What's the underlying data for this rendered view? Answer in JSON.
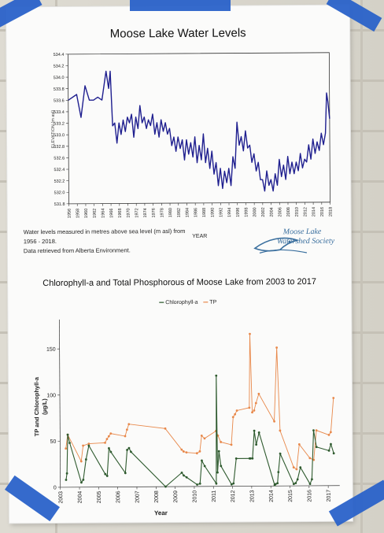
{
  "poster": {
    "chart1": {
      "title": "Moose Lake Water Levels",
      "ylabel": "ELEVATION (m asl)",
      "xlabel": "YEAR",
      "yticks": [
        "534.4",
        "534.2",
        "534.0",
        "533.8",
        "533.6",
        "533.4",
        "533.2",
        "533.0",
        "532.8",
        "532.6",
        "532.4",
        "532.2",
        "532.0",
        "531.8"
      ],
      "xticks": [
        "1956",
        "1958",
        "1960",
        "1962",
        "1964",
        "1966",
        "1968",
        "1970",
        "1972",
        "1974",
        "1976",
        "1978",
        "1980",
        "1982",
        "1984",
        "1986",
        "1988",
        "1990",
        "1992",
        "1994",
        "1996",
        "1998",
        "2000",
        "2002",
        "2004",
        "2006",
        "2008",
        "2010",
        "2012",
        "2014",
        "2016",
        "2018"
      ],
      "note_line1": "Water levels measured in metres above sea level (m asl) from",
      "note_line2": "1956 - 2018.",
      "note_line3": "Data retrieved from Alberta Environment.",
      "logo_line1": "Moose Lake",
      "logo_line2": "Watershed Society",
      "line_color": "#1f1f8f"
    },
    "chart2": {
      "title": "Chlorophyll-a and Total Phosphorous of Moose Lake from 2003 to 2017",
      "legend_chl": "Chlorophyll-a",
      "legend_tp": "TP",
      "ylabel_line1": "TP and Chlorophyll-a",
      "ylabel_line2": "(µg/L)",
      "xlabel": "Year",
      "yticks": [
        "150",
        "100",
        "50",
        "0"
      ],
      "xticks": [
        "2003",
        "2004",
        "2005",
        "2006",
        "2007",
        "2008",
        "2009",
        "2010",
        "2011",
        "2012",
        "2013",
        "2014",
        "2015",
        "2016",
        "2017"
      ],
      "chl_color": "#2e5a2e",
      "tp_color": "#e8884a"
    }
  },
  "chart_data": [
    {
      "type": "line",
      "title": "Moose Lake Water Levels",
      "xlabel": "YEAR",
      "ylabel": "ELEVATION (m asl)",
      "xlim": [
        1956,
        2018
      ],
      "ylim": [
        531.8,
        534.4
      ],
      "grid": false,
      "series": [
        {
          "x": [
            1956,
            1958,
            1959,
            1960,
            1961,
            1962,
            1963,
            1964,
            1965,
            1965.6,
            1966,
            1966.5,
            1967,
            1967.5,
            1968,
            1968.5,
            1969,
            1969.5,
            1970,
            1970.5,
            1971,
            1971.5,
            1972,
            1972.5,
            1973,
            1973.5,
            1974,
            1974.5,
            1975,
            1975.5,
            1976,
            1976.5,
            1977,
            1977.5,
            1978,
            1978.5,
            1979,
            1979.5,
            1980,
            1980.5,
            1981,
            1981.5,
            1982,
            1982.5,
            1983,
            1983.5,
            1984,
            1984.5,
            1985,
            1985.5,
            1986,
            1986.5,
            1987,
            1987.5,
            1988,
            1988.5,
            1989,
            1989.5,
            1990,
            1990.5,
            1991,
            1991.5,
            1992,
            1992.5,
            1993,
            1993.5,
            1994,
            1994.5,
            1995,
            1995.5,
            1996,
            1996.5,
            1997,
            1997.5,
            1998,
            1998.5,
            1999,
            1999.5,
            2000,
            2000.5,
            2001,
            2001.5,
            2002,
            2002.5,
            2003,
            2003.5,
            2004,
            2004.5,
            2005,
            2005.5,
            2006,
            2006.5,
            2007,
            2007.5,
            2008,
            2008.5,
            2009,
            2009.5,
            2010,
            2010.5,
            2011,
            2011.5,
            2012,
            2012.5,
            2013,
            2013.5,
            2014,
            2014.5,
            2015,
            2015.5,
            2016,
            2016.5,
            2017,
            2017.3,
            2017.6,
            2018
          ],
          "y": [
            533.6,
            533.7,
            533.3,
            533.85,
            533.6,
            533.6,
            533.65,
            533.6,
            534.1,
            533.8,
            534.1,
            533.15,
            533.2,
            532.85,
            533.2,
            533.0,
            533.25,
            533.05,
            533.3,
            533.2,
            533.35,
            532.95,
            533.3,
            533.1,
            533.5,
            533.2,
            533.3,
            533.1,
            533.25,
            533.15,
            533.35,
            533.0,
            533.2,
            532.95,
            533.25,
            533.05,
            533.2,
            533.0,
            533.1,
            532.8,
            532.95,
            532.7,
            532.95,
            532.75,
            532.9,
            532.55,
            532.9,
            532.65,
            532.85,
            532.6,
            532.95,
            532.5,
            532.8,
            532.55,
            533.0,
            532.5,
            532.75,
            532.4,
            532.7,
            532.3,
            532.5,
            532.1,
            532.4,
            532.05,
            532.35,
            532.15,
            532.4,
            532.1,
            532.6,
            532.4,
            533.2,
            532.8,
            532.95,
            532.7,
            533.05,
            532.75,
            532.8,
            532.5,
            532.65,
            532.35,
            532.5,
            532.2,
            532.2,
            532.0,
            532.35,
            532.1,
            532.2,
            532.0,
            532.3,
            532.1,
            532.55,
            532.25,
            532.45,
            532.2,
            532.6,
            532.3,
            532.5,
            532.3,
            532.5,
            532.35,
            532.65,
            532.4,
            532.55,
            532.5,
            532.8,
            532.55,
            532.9,
            532.65,
            532.85,
            532.7,
            533.0,
            532.8,
            533.0,
            533.7,
            533.55,
            533.25
          ]
        }
      ]
    },
    {
      "type": "line",
      "title": "Chlorophyll-a and Total Phosphorous of Moose Lake from 2003 to 2017",
      "xlabel": "Year",
      "ylabel": "TP and Chlorophyll-a (µg/L)",
      "xlim": [
        2003,
        2017.6
      ],
      "ylim": [
        0,
        175
      ],
      "grid": false,
      "legend": "top-center",
      "series": [
        {
          "name": "Chlorophyll-a",
          "x": [
            2003.3,
            2003.35,
            2003.4,
            2003.5,
            2004.1,
            2004.2,
            2004.35,
            2004.5,
            2005.35,
            2005.45,
            2005.55,
            2005.65,
            2006.4,
            2006.5,
            2006.6,
            2006.7,
            2008.5,
            2009.35,
            2009.45,
            2009.6,
            2010.15,
            2010.3,
            2010.4,
            2010.55,
            2011.15,
            2011.18,
            2011.22,
            2011.3,
            2011.4,
            2011.95,
            2012.05,
            2012.2,
            2012.9,
            2012.95,
            2013.05,
            2013.15,
            2013.25,
            2013.4,
            2014.2,
            2014.25,
            2014.35,
            2014.4,
            2014.5,
            2015.2,
            2015.3,
            2015.4,
            2015.55,
            2016.05,
            2016.15,
            2016.25,
            2016.4,
            2017.05,
            2017.15,
            2017.3
          ],
          "y": [
            8,
            15,
            57,
            48,
            5,
            8,
            30,
            45,
            14,
            12,
            42,
            38,
            15,
            40,
            42,
            38,
            0,
            15,
            12,
            10,
            2,
            3,
            28,
            22,
            3,
            120,
            15,
            38,
            22,
            2,
            3,
            30,
            30,
            30,
            30,
            60,
            45,
            58,
            1,
            2,
            3,
            15,
            35,
            2,
            3,
            7,
            20,
            2,
            7,
            60,
            42,
            38,
            45,
            35
          ]
        },
        {
          "name": "TP",
          "x": [
            2003.3,
            2003.4,
            2004.1,
            2004.2,
            2004.5,
            2005.35,
            2005.45,
            2005.55,
            2005.65,
            2006.4,
            2006.5,
            2006.6,
            2008.5,
            2009.35,
            2009.45,
            2009.6,
            2010.15,
            2010.3,
            2010.4,
            2010.55,
            2011.15,
            2011.25,
            2011.4,
            2011.95,
            2012.05,
            2012.15,
            2012.25,
            2012.9,
            2012.95,
            2013.05,
            2013.15,
            2013.25,
            2013.4,
            2014.2,
            2014.35,
            2014.5,
            2015.2,
            2015.35,
            2015.5,
            2016.05,
            2016.25,
            2016.4,
            2017.05,
            2017.15,
            2017.3
          ],
          "y": [
            42,
            57,
            28,
            45,
            47,
            48,
            52,
            55,
            58,
            55,
            62,
            68,
            63,
            40,
            38,
            37,
            36,
            38,
            55,
            52,
            60,
            55,
            48,
            45,
            75,
            78,
            82,
            85,
            165,
            80,
            82,
            90,
            100,
            70,
            150,
            60,
            20,
            18,
            45,
            30,
            28,
            60,
            55,
            58,
            95
          ]
        }
      ]
    }
  ]
}
